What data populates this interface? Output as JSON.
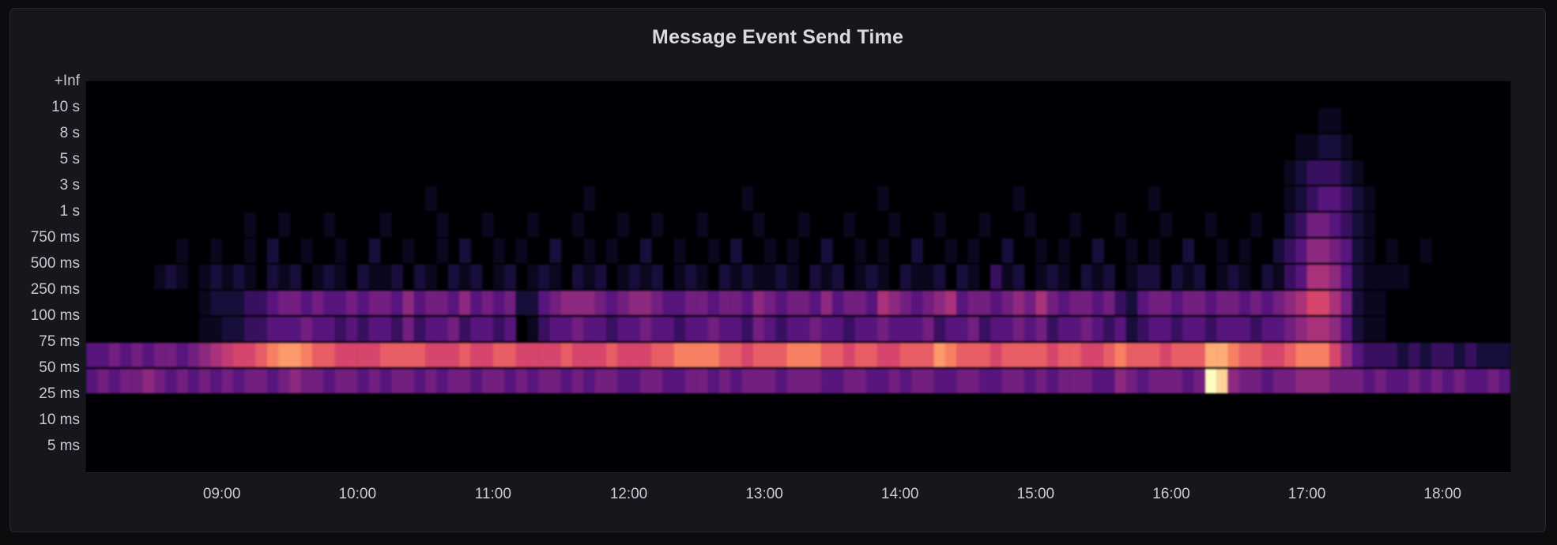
{
  "page": {
    "background": "#0b0c0e"
  },
  "panel": {
    "title": "Message Event Send Time",
    "background": "#16171c",
    "border_color": "#26282e",
    "title_color": "#d9dadf",
    "axis_text_color": "#c9cad2"
  },
  "chart_data": {
    "type": "heatmap",
    "title": "Message Event Send Time",
    "x_axis": {
      "tick_labels": [
        "09:00",
        "10:00",
        "11:00",
        "12:00",
        "13:00",
        "14:00",
        "15:00",
        "16:00",
        "17:00",
        "18:00"
      ],
      "range_start": "08:00",
      "range_end": "18:30",
      "bucket_minutes": 5,
      "grid": false
    },
    "y_axis": {
      "tick_labels": [
        "+Inf",
        "10 s",
        "8 s",
        "5 s",
        "3 s",
        "1 s",
        "750 ms",
        "500 ms",
        "250 ms",
        "100 ms",
        "75 ms",
        "50 ms",
        "25 ms",
        "10 ms",
        "5 ms"
      ],
      "note": "labels mark upper bound of each latency bucket row, top to bottom"
    },
    "legend": {
      "visible": false
    },
    "colormap": {
      "name": "magma",
      "stops": [
        [
          0.0,
          "#000004"
        ],
        [
          0.125,
          "#140e36"
        ],
        [
          0.25,
          "#51127c"
        ],
        [
          0.375,
          "#822681"
        ],
        [
          0.5,
          "#b73779"
        ],
        [
          0.625,
          "#de4968"
        ],
        [
          0.75,
          "#fc8961"
        ],
        [
          0.875,
          "#feb078"
        ],
        [
          1.0,
          "#fcfdbf"
        ]
      ]
    },
    "cell_encoding": "each row is a string of 126 hex digits (0-f), one per 5-minute column from 08:00 to 18:30; value = relative bucket count intensity 0..15",
    "rows": [
      {
        "le": "+Inf",
        "cells": "000000000000000000000000000000000000000000000000000000000000000000000000000000000000000000000000000000000000000000000000000000"
      },
      {
        "le": "10 s",
        "cells": "000000000000000000000000000000000000000000000000000000000000000000000000000000000000000000000000000000000000011000000000000000"
      },
      {
        "le": "8 s",
        "cells": "000000000000000000000000000000000000000000000000000000000000000000000000000000000000000000000000000000000001122100000000000000"
      },
      {
        "le": "5 s",
        "cells": "000000000000000000000000000000000000000000000000000000000000000000000000000000000000000000000000000000000012333210000000000000"
      },
      {
        "le": "3 s",
        "cells": "000000000000000000000000000000100000000000001000000000000010000000000010000000000010000000000010000000000012344321000000000000"
      },
      {
        "le": "1 s",
        "cells": "000000000000001001000100001000010001000100010001001000100001000100010001000100010001000100010001000100010023554321000000000000"
      },
      {
        "le": "750 ms",
        "cells": "000000001001001020010010020010010200101002001010020010010200101002001010020010100200101002001010020010100234665421010010000000"
      },
      {
        "le": "500 ms",
        "cells": "000000121012121021201210211202102120120121021201212012102121121021201210211202103120121021201220212012102134776421111000000000"
      },
      {
        "le": "250 ms",
        "cells": "000000000012223345545445455464554645452245666545665445545546545546455476545674554565754554532455455455454567997521100000000000"
      },
      {
        "le": "100 ms",
        "cells": "000000000011223344454434344353445344340134454434454434454435434454434454445344534454534454342344344344434456776421100000000000"
      },
      {
        "le": "75 ms",
        "cells": "445454554567899abccbaa9999aaaa999a99aa9999a999a999aabbbbaa9aaabbbaa9aa99aaacbaaa9aaaa9aa99abaaa9aaaddbaa99abbb9643332323323222"
      },
      {
        "le": "50 ms",
        "cells": "454556545454545545655455454554545545545455454554455445545455545554455445455445544554545554465455545fe6554556665554544545454454"
      },
      {
        "le": "25 ms",
        "cells": "000000000000000000000000000000000000000000000000000000000000000000000000000000000000000000000000000000000000000000000000000000"
      },
      {
        "le": "10 ms",
        "cells": "000000000000000000000000000000000000000000000000000000000000000000000000000000000000000000000000000000000000000000000000000000"
      },
      {
        "le": "5 ms",
        "cells": "000000000000000000000000000000000000000000000000000000000000000000000000000000000000000000000000000000000000000000000000000000"
      }
    ]
  }
}
